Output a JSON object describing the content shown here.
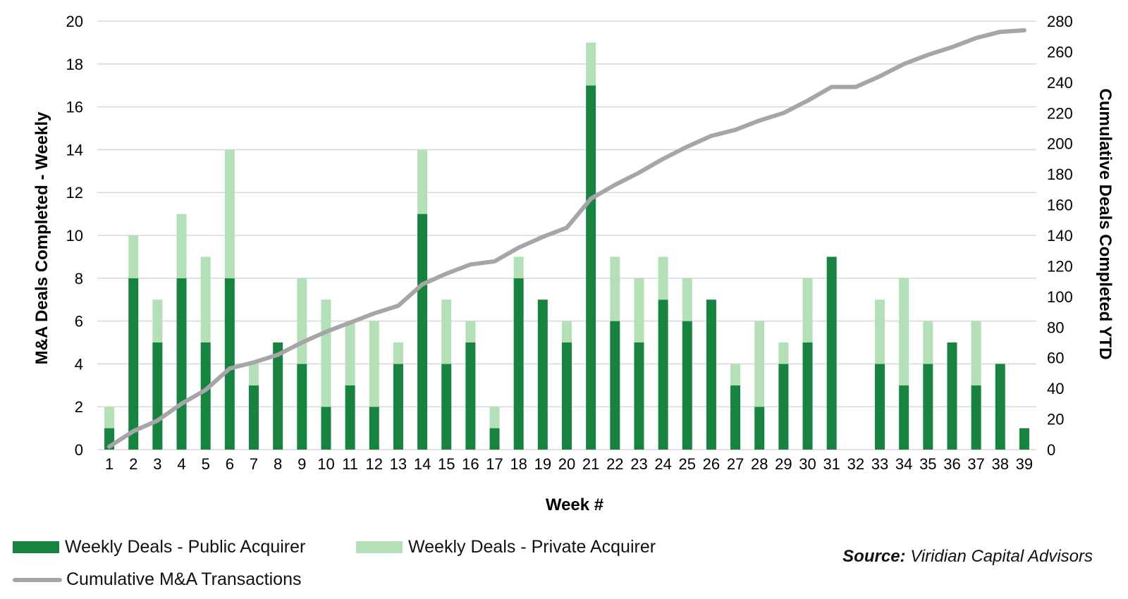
{
  "chart_data": {
    "type": "bar",
    "stacked": true,
    "categories": [
      "1",
      "2",
      "3",
      "4",
      "5",
      "6",
      "7",
      "8",
      "9",
      "10",
      "11",
      "12",
      "13",
      "14",
      "15",
      "16",
      "17",
      "18",
      "19",
      "20",
      "21",
      "22",
      "23",
      "24",
      "25",
      "26",
      "27",
      "28",
      "29",
      "30",
      "31",
      "32",
      "33",
      "34",
      "35",
      "36",
      "37",
      "38",
      "39"
    ],
    "series": [
      {
        "name": "Weekly Deals - Public Acquirer",
        "axis": "left",
        "kind": "bar",
        "color": "#16843f",
        "values": [
          1,
          8,
          5,
          8,
          5,
          8,
          3,
          5,
          4,
          2,
          3,
          2,
          4,
          11,
          4,
          5,
          1,
          8,
          7,
          5,
          17,
          6,
          5,
          7,
          6,
          7,
          3,
          2,
          4,
          5,
          9,
          0,
          4,
          3,
          4,
          5,
          3,
          4,
          1
        ]
      },
      {
        "name": "Weekly Deals - Private Acquirer",
        "axis": "left",
        "kind": "bar",
        "color": "#b4e0b8",
        "values": [
          1,
          2,
          2,
          3,
          4,
          6,
          1,
          0,
          4,
          5,
          3,
          4,
          1,
          3,
          3,
          1,
          1,
          1,
          0,
          1,
          2,
          3,
          3,
          2,
          2,
          0,
          1,
          4,
          1,
          3,
          0,
          0,
          3,
          5,
          2,
          0,
          3,
          0,
          0
        ]
      },
      {
        "name": "Cumulative M&A Transactions",
        "axis": "right",
        "kind": "line",
        "color": "#a6a6a6",
        "values": [
          2,
          12,
          19,
          30,
          39,
          53,
          57,
          62,
          70,
          77,
          83,
          89,
          94,
          108,
          115,
          121,
          123,
          132,
          139,
          145,
          164,
          173,
          181,
          190,
          198,
          205,
          209,
          215,
          220,
          228,
          237,
          237,
          244,
          252,
          258,
          263,
          269,
          273,
          274
        ]
      }
    ],
    "xlabel": "Week #",
    "ylabel": "M&A Deals Completed - Weekly",
    "y2label": "Cumulative Deals Completed YTD",
    "ylim": [
      0,
      20
    ],
    "y_ticks": [
      "0",
      "2",
      "4",
      "6",
      "8",
      "10",
      "12",
      "14",
      "16",
      "18",
      "20"
    ],
    "y2lim": [
      0,
      280
    ],
    "y2_ticks": [
      "0",
      "20",
      "40",
      "60",
      "80",
      "100",
      "120",
      "140",
      "160",
      "180",
      "200",
      "220",
      "240",
      "260",
      "280"
    ],
    "grid": true,
    "legend_position": "bottom-left"
  },
  "legend": {
    "public": "Weekly Deals - Public Acquirer",
    "private": "Weekly Deals - Private Acquirer",
    "cumulative": "Cumulative M&A Transactions"
  },
  "source": {
    "label": "Source:",
    "text": "Viridian Capital Advisors"
  },
  "colors": {
    "public": "#16843f",
    "private": "#b4e0b8",
    "line": "#a6a6a6",
    "grid": "#d9d9d9"
  }
}
